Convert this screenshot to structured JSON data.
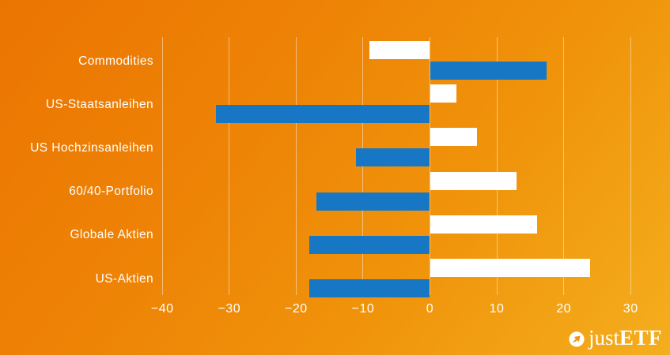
{
  "chart_data": {
    "type": "bar",
    "orientation": "horizontal",
    "title": "",
    "categories": [
      "Commodities",
      "US-Staatsanleihen",
      "US Hochzinsanleihen",
      "60/40-Portfolio",
      "Globale Aktien",
      "US-Aktien"
    ],
    "series": [
      {
        "name": "white-series",
        "color": "#ffffff",
        "values": [
          -9,
          4,
          7,
          13,
          16,
          24
        ]
      },
      {
        "name": "blue-series",
        "color": "#1777c4",
        "values": [
          17.5,
          -32,
          -11,
          -17,
          -18,
          -18
        ]
      }
    ],
    "xticks": [
      -40,
      -30,
      -20,
      -10,
      0,
      10,
      20,
      30
    ],
    "xlim": [
      -40,
      33
    ],
    "grid": "vertical-only",
    "legend": "none"
  },
  "branding": {
    "logo_just": "just",
    "logo_etf": "ETF"
  },
  "colors": {
    "background_top_left": "#eb7502",
    "background_bottom_right": "#f4ae1e",
    "bar_blue": "#1777c4",
    "bar_white": "#ffffff",
    "gridline": "rgba(255,255,255,0.45)",
    "text": "#ffffff",
    "logo_arrow_orange": "#f0960e"
  }
}
